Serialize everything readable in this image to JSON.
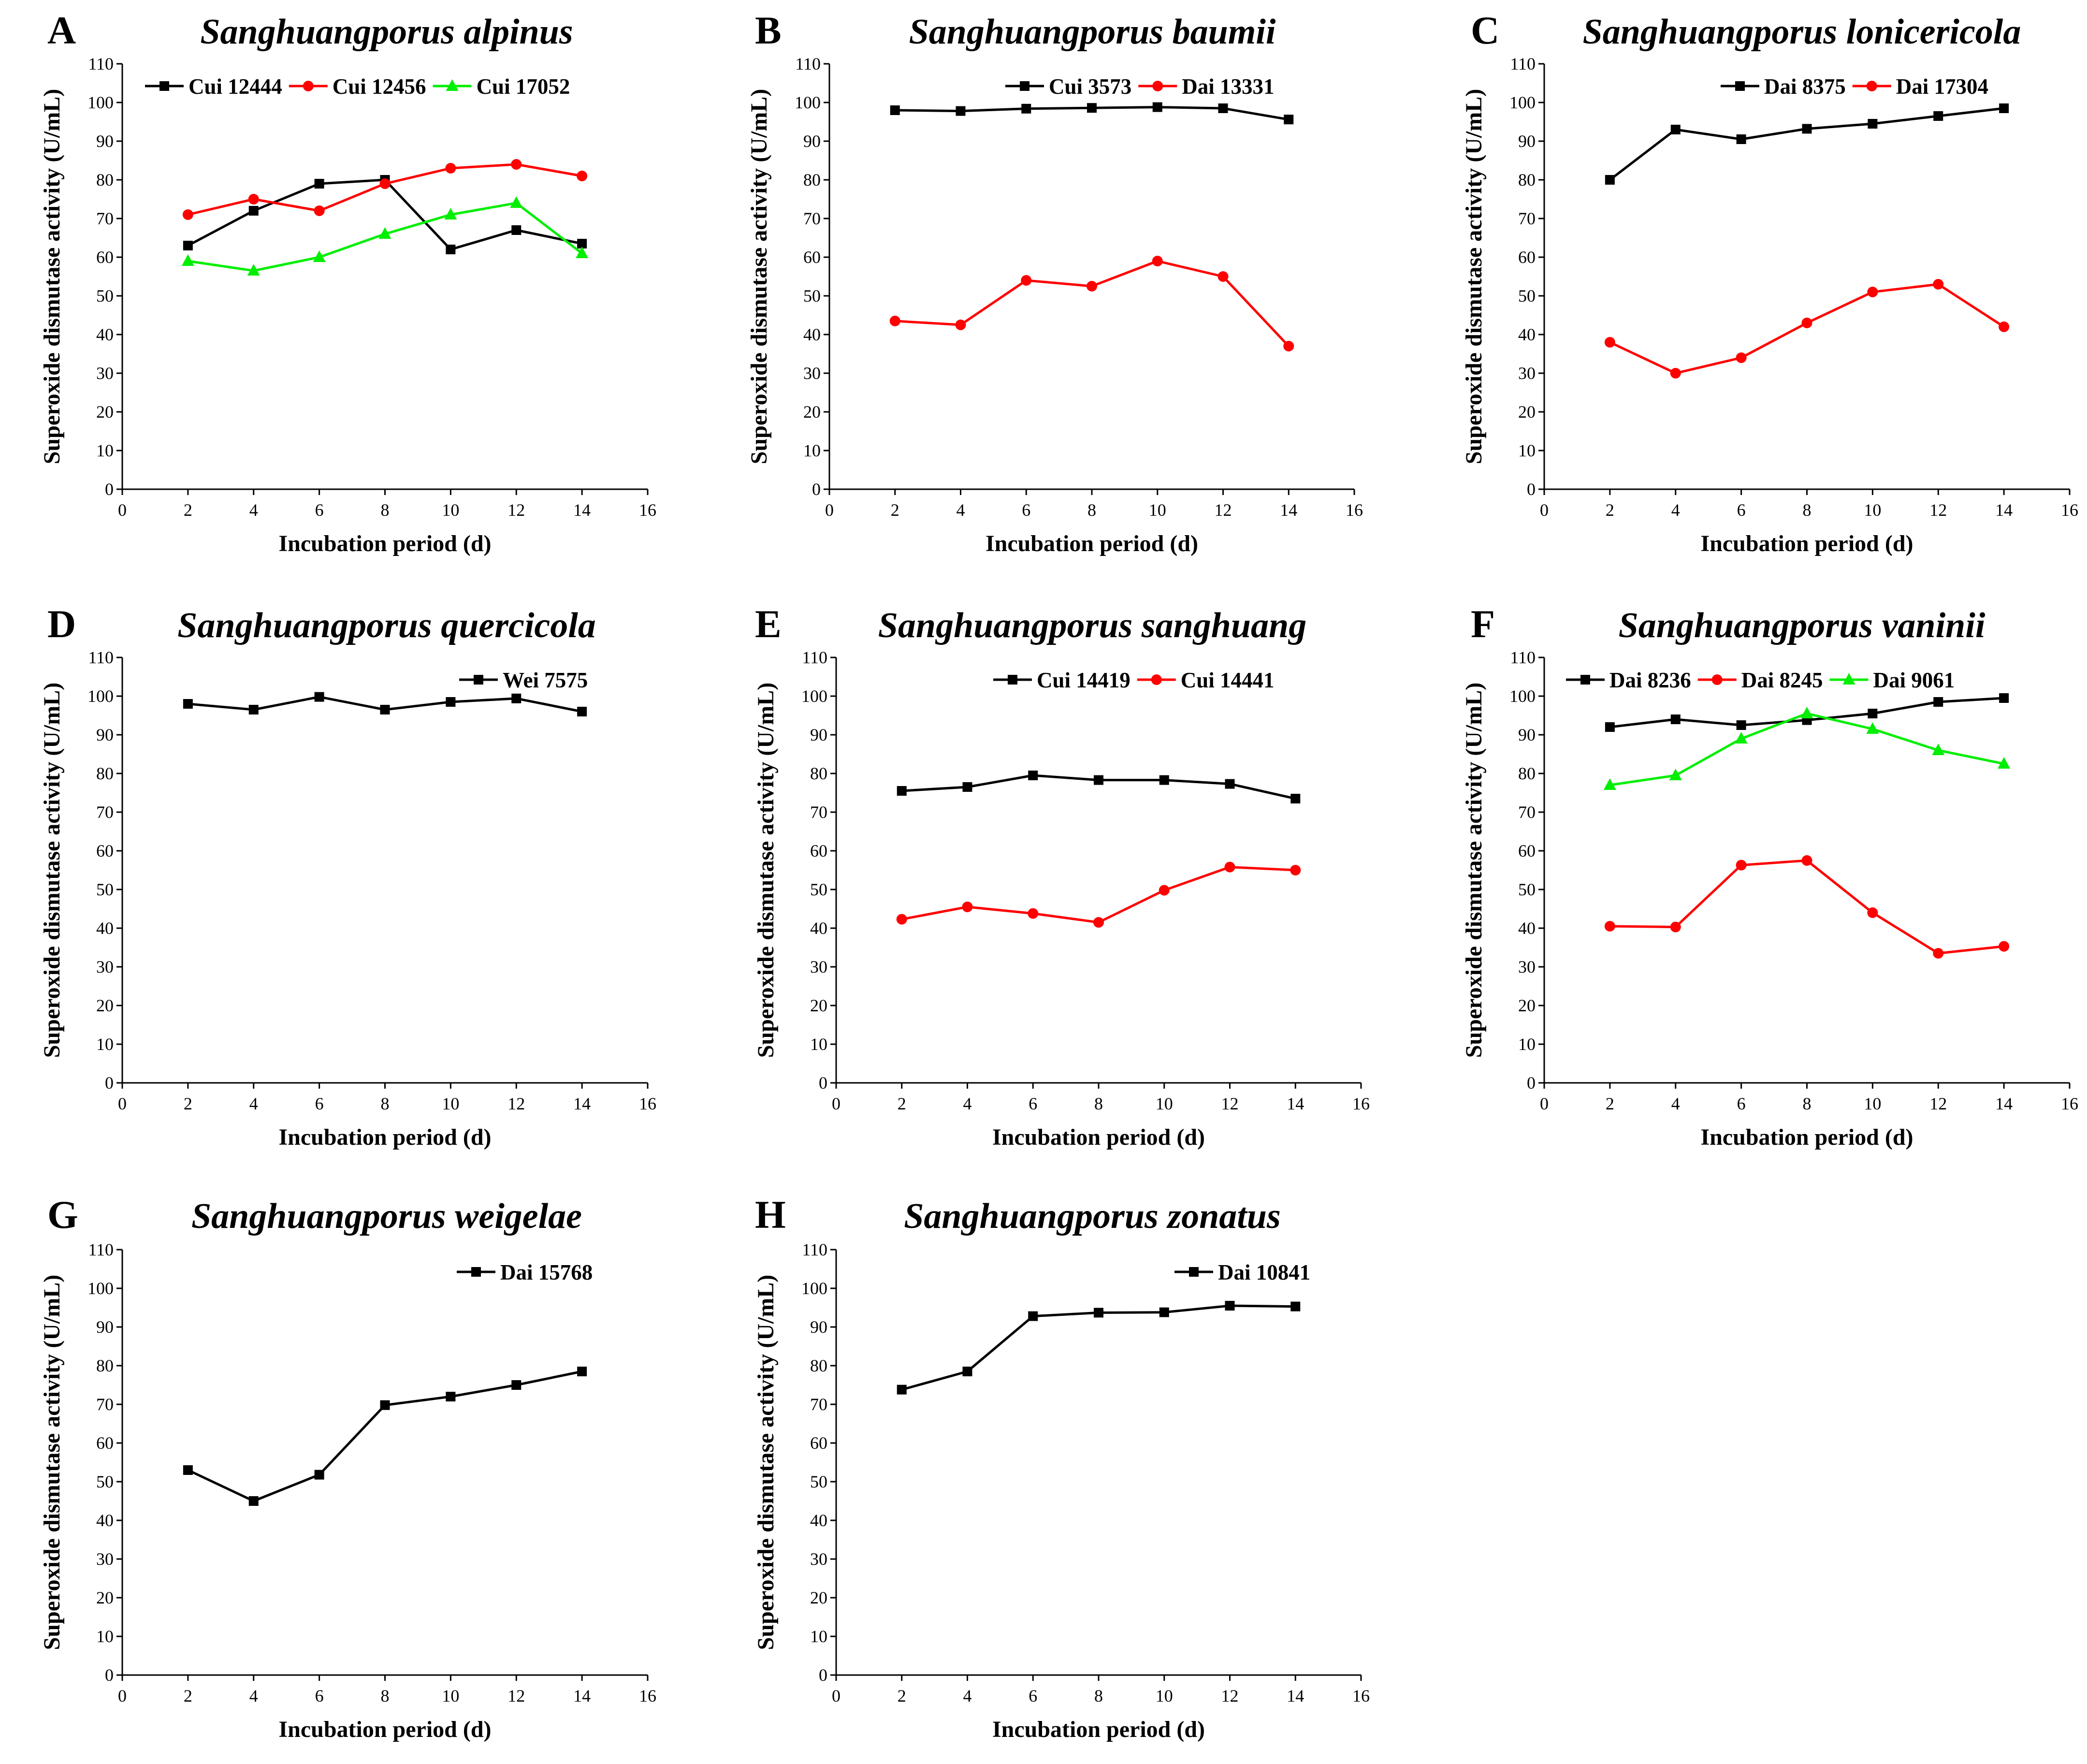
{
  "figure": {
    "panels": [
      {
        "letter": "A",
        "title": "Sanghuangporus alpinus"
      },
      {
        "letter": "B",
        "title": "Sanghuangporus baumii"
      },
      {
        "letter": "C",
        "title": "Sanghuangporus lonicericola"
      },
      {
        "letter": "D",
        "title": "Sanghuangporus  quercicola"
      },
      {
        "letter": "E",
        "title": "Sanghuangporus sanghuang"
      },
      {
        "letter": "F",
        "title": "Sanghuangporus vaninii"
      },
      {
        "letter": "G",
        "title": "Sanghuangporus  weigelae"
      },
      {
        "letter": "H",
        "title": "Sanghuangporus  zonatus"
      }
    ]
  },
  "colors": {
    "black": "#000000",
    "red": "#ff0000",
    "green": "#00ee00"
  },
  "chart_data": [
    {
      "type": "line",
      "panel": "A",
      "title": "Sanghuangporus alpinus",
      "xlabel": "Incubation period (d)",
      "ylabel": "Superoxide dismutase activity (U/mL)",
      "xlim": [
        0,
        16
      ],
      "ylim": [
        0,
        110
      ],
      "xticks": [
        0,
        2,
        4,
        6,
        8,
        10,
        12,
        14,
        16
      ],
      "yticks": [
        0,
        10,
        20,
        30,
        40,
        50,
        60,
        70,
        80,
        90,
        100,
        110
      ],
      "x": [
        2,
        4,
        6,
        8,
        10,
        12,
        14
      ],
      "legend_position": "top",
      "series": [
        {
          "name": "Cui 12444",
          "color": "#000000",
          "marker": "square",
          "values": [
            63,
            72,
            79,
            80,
            62,
            67,
            63.5
          ]
        },
        {
          "name": "Cui 12456",
          "color": "#ff0000",
          "marker": "circle",
          "values": [
            71,
            75,
            72,
            79,
            83,
            84,
            81
          ]
        },
        {
          "name": "Cui 17052",
          "color": "#00ee00",
          "marker": "triangle",
          "values": [
            59,
            56.5,
            60,
            66,
            71,
            74,
            61
          ]
        }
      ]
    },
    {
      "type": "line",
      "panel": "B",
      "title": "Sanghuangporus baumii",
      "xlabel": "Incubation period (d)",
      "ylabel": "Superoxide dismutase activity (U/mL)",
      "xlim": [
        0,
        16
      ],
      "ylim": [
        0,
        110
      ],
      "xticks": [
        0,
        2,
        4,
        6,
        8,
        10,
        12,
        14,
        16
      ],
      "yticks": [
        0,
        10,
        20,
        30,
        40,
        50,
        60,
        70,
        80,
        90,
        100,
        110
      ],
      "x": [
        2,
        4,
        6,
        8,
        10,
        12,
        14
      ],
      "legend_position": "top-right",
      "series": [
        {
          "name": "Cui 3573",
          "color": "#000000",
          "marker": "square",
          "values": [
            98,
            97.8,
            98.4,
            98.6,
            98.8,
            98.5,
            95.6
          ]
        },
        {
          "name": "Dai 13331",
          "color": "#ff0000",
          "marker": "circle",
          "values": [
            43.5,
            42.5,
            54,
            52.5,
            59,
            55,
            37
          ]
        }
      ]
    },
    {
      "type": "line",
      "panel": "C",
      "title": "Sanghuangporus lonicericola",
      "xlabel": "Incubation period (d)",
      "ylabel": "Superoxide dismutase activity (U/mL)",
      "xlim": [
        0,
        16
      ],
      "ylim": [
        0,
        110
      ],
      "xticks": [
        0,
        2,
        4,
        6,
        8,
        10,
        12,
        14,
        16
      ],
      "yticks": [
        0,
        10,
        20,
        30,
        40,
        50,
        60,
        70,
        80,
        90,
        100,
        110
      ],
      "x": [
        2,
        4,
        6,
        8,
        10,
        12,
        14
      ],
      "legend_position": "top-right",
      "series": [
        {
          "name": "Dai 8375",
          "color": "#000000",
          "marker": "square",
          "values": [
            80,
            93,
            90.5,
            93.2,
            94.5,
            96.5,
            98.5
          ]
        },
        {
          "name": "Dai 17304",
          "color": "#ff0000",
          "marker": "circle",
          "values": [
            38,
            30,
            34,
            43,
            51,
            53,
            42
          ]
        }
      ]
    },
    {
      "type": "line",
      "panel": "D",
      "title": "Sanghuangporus  quercicola",
      "xlabel": "Incubation period (d)",
      "ylabel": "Superoxide dismutase activity (U/mL)",
      "xlim": [
        0,
        16
      ],
      "ylim": [
        0,
        110
      ],
      "xticks": [
        0,
        2,
        4,
        6,
        8,
        10,
        12,
        14,
        16
      ],
      "yticks": [
        0,
        10,
        20,
        30,
        40,
        50,
        60,
        70,
        80,
        90,
        100,
        110
      ],
      "x": [
        2,
        4,
        6,
        8,
        10,
        12,
        14
      ],
      "legend_position": "top-right",
      "series": [
        {
          "name": "Wei 7575",
          "color": "#000000",
          "marker": "square",
          "values": [
            98,
            96.5,
            99.8,
            96.5,
            98.5,
            99.4,
            96
          ]
        }
      ]
    },
    {
      "type": "line",
      "panel": "E",
      "title": "Sanghuangporus sanghuang",
      "xlabel": "Incubation period (d)",
      "ylabel": "Superoxide dismutase activity (U/mL)",
      "xlim": [
        0,
        16
      ],
      "ylim": [
        0,
        110
      ],
      "xticks": [
        0,
        2,
        4,
        6,
        8,
        10,
        12,
        14,
        16
      ],
      "yticks": [
        0,
        10,
        20,
        30,
        40,
        50,
        60,
        70,
        80,
        90,
        100,
        110
      ],
      "x": [
        2,
        4,
        6,
        8,
        10,
        12,
        14
      ],
      "legend_position": "top-right",
      "series": [
        {
          "name": "Cui 14419",
          "color": "#000000",
          "marker": "square",
          "values": [
            75.5,
            76.5,
            79.5,
            78.3,
            78.3,
            77.3,
            73.5
          ]
        },
        {
          "name": "Cui 14441",
          "color": "#ff0000",
          "marker": "circle",
          "values": [
            42.3,
            45.5,
            43.8,
            41.5,
            49.8,
            55.8,
            55
          ]
        }
      ]
    },
    {
      "type": "line",
      "panel": "F",
      "title": "Sanghuangporus vaninii",
      "xlabel": "Incubation period (d)",
      "ylabel": "Superoxide dismutase activity (U/mL)",
      "xlim": [
        0,
        16
      ],
      "ylim": [
        0,
        110
      ],
      "xticks": [
        0,
        2,
        4,
        6,
        8,
        10,
        12,
        14,
        16
      ],
      "yticks": [
        0,
        10,
        20,
        30,
        40,
        50,
        60,
        70,
        80,
        90,
        100,
        110
      ],
      "x": [
        2,
        4,
        6,
        8,
        10,
        12,
        14
      ],
      "legend_position": "top",
      "series": [
        {
          "name": "Dai 8236",
          "color": "#000000",
          "marker": "square",
          "values": [
            92,
            94,
            92.5,
            93.8,
            95.5,
            98.5,
            99.5
          ]
        },
        {
          "name": "Dai 8245",
          "color": "#ff0000",
          "marker": "circle",
          "values": [
            40.5,
            40.3,
            56.3,
            57.5,
            44,
            33.5,
            35.3
          ]
        },
        {
          "name": "Dai 9061",
          "color": "#00ee00",
          "marker": "triangle",
          "values": [
            77,
            79.5,
            89,
            95.5,
            91.5,
            86,
            82.5
          ]
        }
      ]
    },
    {
      "type": "line",
      "panel": "G",
      "title": "Sanghuangporus  weigelae",
      "xlabel": "Incubation period (d)",
      "ylabel": "Superoxide dismutase activity (U/mL)",
      "xlim": [
        0,
        16
      ],
      "ylim": [
        0,
        110
      ],
      "xticks": [
        0,
        2,
        4,
        6,
        8,
        10,
        12,
        14,
        16
      ],
      "yticks": [
        0,
        10,
        20,
        30,
        40,
        50,
        60,
        70,
        80,
        90,
        100,
        110
      ],
      "x": [
        2,
        4,
        6,
        8,
        10,
        12,
        14
      ],
      "legend_position": "top-right",
      "series": [
        {
          "name": "Dai 15768",
          "color": "#000000",
          "marker": "square",
          "values": [
            53,
            45,
            51.8,
            69.8,
            72,
            75,
            78.5
          ]
        }
      ]
    },
    {
      "type": "line",
      "panel": "H",
      "title": "Sanghuangporus  zonatus",
      "xlabel": "Incubation period (d)",
      "ylabel": "Superoxide dismutase activity (U/mL)",
      "xlim": [
        0,
        16
      ],
      "ylim": [
        0,
        110
      ],
      "xticks": [
        0,
        2,
        4,
        6,
        8,
        10,
        12,
        14,
        16
      ],
      "yticks": [
        0,
        10,
        20,
        30,
        40,
        50,
        60,
        70,
        80,
        90,
        100,
        110
      ],
      "x": [
        2,
        4,
        6,
        8,
        10,
        12,
        14
      ],
      "legend_position": "top-right",
      "series": [
        {
          "name": "Dai 10841",
          "color": "#000000",
          "marker": "square",
          "values": [
            73.8,
            78.5,
            92.8,
            93.7,
            93.8,
            95.5,
            95.3
          ]
        }
      ]
    }
  ]
}
